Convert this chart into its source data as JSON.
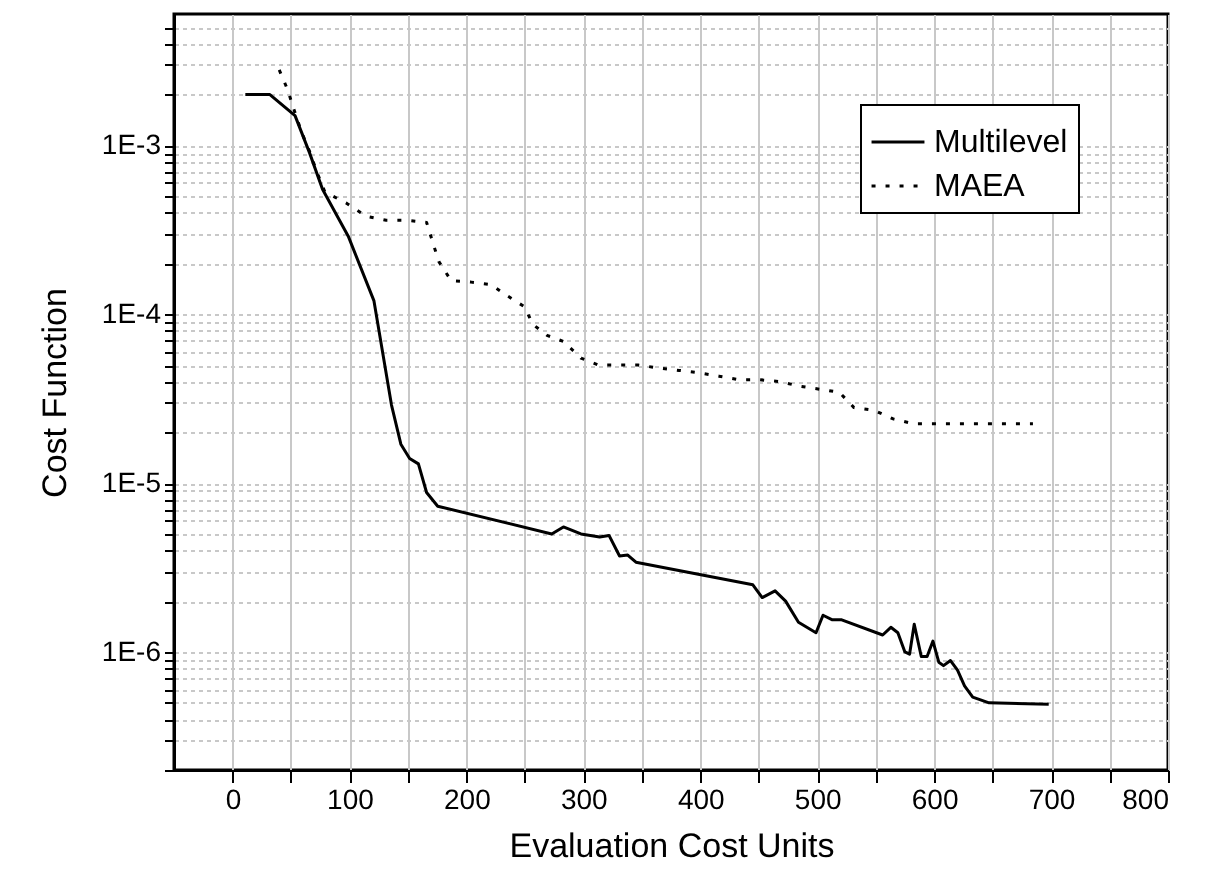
{
  "chart_data": {
    "type": "line",
    "xlabel": "Evaluation Cost Units",
    "ylabel": "Cost Function",
    "xlim": [
      -50,
      800
    ],
    "xticks": [
      0,
      {
        "value": 50,
        "label": null
      },
      100,
      {
        "value": 150,
        "label": null
      },
      200,
      {
        "value": 250,
        "label": null
      },
      300,
      {
        "value": 350,
        "label": null
      },
      400,
      {
        "value": 450,
        "label": null
      },
      500,
      {
        "value": 550,
        "label": null
      },
      600,
      {
        "value": 650,
        "label": null
      },
      700,
      {
        "value": 750,
        "label": null
      },
      800
    ],
    "ylim": [
      2e-07,
      0.006
    ],
    "log": "y",
    "yticks": [
      {
        "value": 2e-07,
        "label": null
      },
      {
        "value": 3e-07,
        "label": null
      },
      {
        "value": 4e-07,
        "label": null
      },
      {
        "value": 5e-07,
        "label": null
      },
      {
        "value": 6e-07,
        "label": null
      },
      {
        "value": 7e-07,
        "label": null
      },
      {
        "value": 8e-07,
        "label": null
      },
      {
        "value": 9e-07,
        "label": null
      },
      {
        "value": 1e-06,
        "label": "1E-6"
      },
      {
        "value": 2e-06,
        "label": null
      },
      {
        "value": 3e-06,
        "label": null
      },
      {
        "value": 4e-06,
        "label": null
      },
      {
        "value": 5e-06,
        "label": null
      },
      {
        "value": 6e-06,
        "label": null
      },
      {
        "value": 7e-06,
        "label": null
      },
      {
        "value": 8e-06,
        "label": null
      },
      {
        "value": 9e-06,
        "label": null
      },
      {
        "value": 1e-05,
        "label": "1E-5"
      },
      {
        "value": 2e-05,
        "label": null
      },
      {
        "value": 3e-05,
        "label": null
      },
      {
        "value": 4e-05,
        "label": null
      },
      {
        "value": 5e-05,
        "label": null
      },
      {
        "value": 6e-05,
        "label": null
      },
      {
        "value": 7e-05,
        "label": null
      },
      {
        "value": 8e-05,
        "label": null
      },
      {
        "value": 9e-05,
        "label": null
      },
      {
        "value": 0.0001,
        "label": "1E-4"
      },
      {
        "value": 0.0002,
        "label": null
      },
      {
        "value": 0.0003,
        "label": null
      },
      {
        "value": 0.0004,
        "label": null
      },
      {
        "value": 0.0005,
        "label": null
      },
      {
        "value": 0.0006,
        "label": null
      },
      {
        "value": 0.0007,
        "label": null
      },
      {
        "value": 0.0008,
        "label": null
      },
      {
        "value": 0.0009,
        "label": null
      },
      {
        "value": 0.001,
        "label": "1E-3"
      },
      {
        "value": 0.002,
        "label": null
      },
      {
        "value": 0.003,
        "label": null
      },
      {
        "value": 0.004,
        "label": null
      },
      {
        "value": 0.005,
        "label": null
      }
    ],
    "grid": true,
    "legend": "top right",
    "series": [
      {
        "name": "Multilevel",
        "color": "#000000",
        "line_style": "solid",
        "x": [
          11,
          32,
          53.5,
          66,
          77,
          99,
          121,
          136,
          144,
          151.5,
          159,
          166,
          175.5,
          273,
          283,
          298,
          314,
          322,
          331,
          338,
          345,
          445,
          453,
          464,
          473,
          484,
          499,
          505,
          513,
          521,
          556,
          563,
          569,
          575,
          579,
          583,
          589,
          594,
          599,
          604,
          608,
          614,
          620,
          626,
          633,
          647,
          698
        ],
        "values": [
          0.002,
          0.002,
          0.0015,
          0.0009,
          0.00055,
          0.00029,
          0.00012,
          2.9e-05,
          1.7e-05,
          1.4e-05,
          1.3e-05,
          8.8e-06,
          7.3e-06,
          5e-06,
          5.5e-06,
          5e-06,
          4.8e-06,
          4.9e-06,
          3.7e-06,
          3.75e-06,
          3.4e-06,
          2.5e-06,
          2.1e-06,
          2.3e-06,
          2e-06,
          1.5e-06,
          1.3e-06,
          1.65e-06,
          1.55e-06,
          1.55e-06,
          1.26e-06,
          1.4e-06,
          1.3e-06,
          1e-06,
          9.7e-07,
          1.46e-06,
          9.4e-07,
          9.4e-07,
          1.16e-06,
          8.7e-07,
          8.3e-07,
          8.9e-07,
          7.8e-07,
          6.3e-07,
          5.4e-07,
          5e-07,
          4.9e-07
        ]
      },
      {
        "name": "MAEA",
        "color": "#000000",
        "line_style": "dotted",
        "x": [
          40,
          47,
          53,
          59,
          66,
          72,
          79,
          97.5,
          114.5,
          131.5,
          149,
          166,
          171,
          176.5,
          187,
          204,
          221,
          234,
          249.5,
          257,
          269,
          283,
          298,
          313,
          330,
          347,
          365,
          382,
          399,
          416,
          433,
          450,
          467,
          485,
          502,
          519,
          531.5,
          548.5,
          565,
          582,
          599,
          616,
          633,
          650,
          667,
          684.5
        ],
        "values": [
          0.0028,
          0.00215,
          0.0016,
          0.0012,
          0.00092,
          0.0007,
          0.00053,
          0.000455,
          0.00038,
          0.00036,
          0.00036,
          0.00035,
          0.00027,
          0.000205,
          0.000158,
          0.000155,
          0.00015,
          0.00013,
          0.000111,
          8.7e-05,
          7.5e-05,
          6.9e-05,
          5.5e-05,
          5e-05,
          5e-05,
          5e-05,
          4.8e-05,
          4.65e-05,
          4.5e-05,
          4.3e-05,
          4.1e-05,
          4.1e-05,
          4e-05,
          3.75e-05,
          3.6e-05,
          3.45e-05,
          2.8e-05,
          2.7e-05,
          2.4e-05,
          2.25e-05,
          2.25e-05,
          2.25e-05,
          2.25e-05,
          2.25e-05,
          2.25e-05,
          2.25e-05
        ]
      }
    ]
  }
}
